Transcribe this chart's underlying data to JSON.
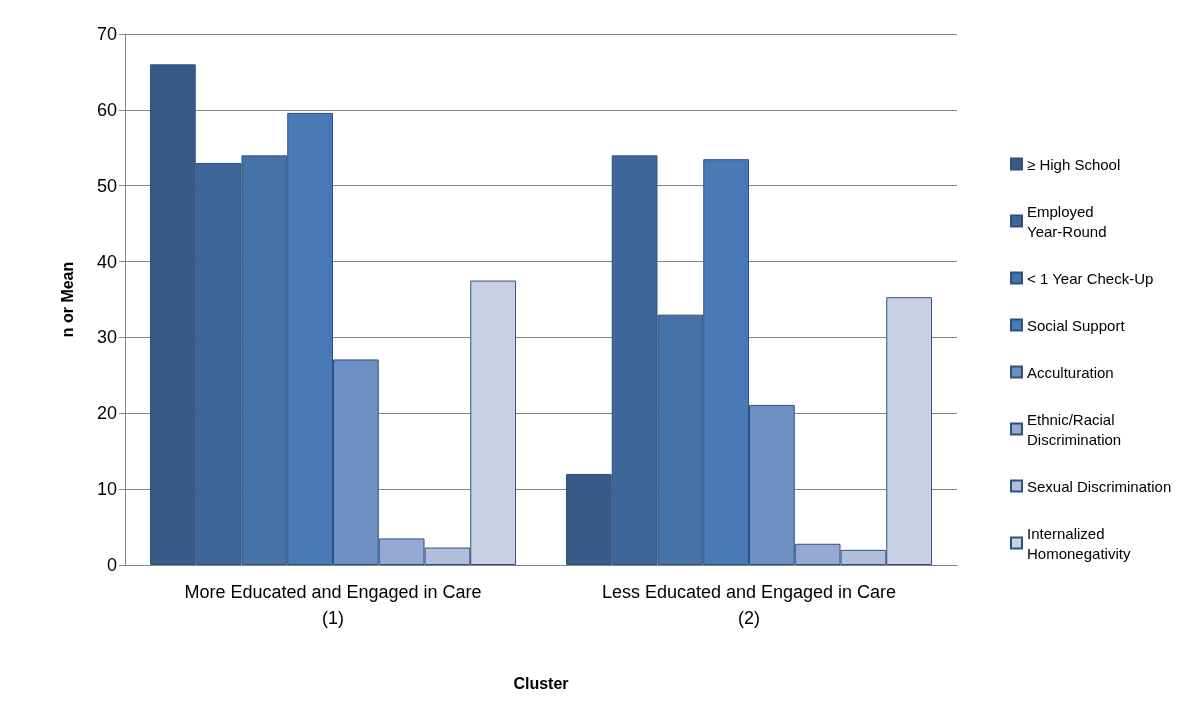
{
  "chart_data": {
    "type": "bar",
    "xlabel": "Cluster",
    "ylabel": "n or Mean",
    "categories": [
      "More Educated and Engaged in Care\n(1)",
      "Less Educated and Engaged in Care\n(2)"
    ],
    "series": [
      {
        "name": "≥ High School",
        "color": "#375a87",
        "values": [
          66,
          12
        ]
      },
      {
        "name": "Employed Year-Round",
        "color": "#3e6699",
        "values": [
          53,
          54
        ]
      },
      {
        "name": "< 1 Year Check-Up",
        "color": "#4572a7",
        "values": [
          54,
          33
        ]
      },
      {
        "name": "Social Support",
        "color": "#4a7ab5",
        "values": [
          59.6,
          53.5
        ]
      },
      {
        "name": "Acculturation",
        "color": "#6c8fc4",
        "values": [
          27.1,
          21.1
        ]
      },
      {
        "name": "Ethnic/Racial Discrimination",
        "color": "#97a9d3",
        "values": [
          3.5,
          2.8
        ]
      },
      {
        "name": "Sexual Discrimination",
        "color": "#afbfdc",
        "values": [
          2.3,
          2.0
        ]
      },
      {
        "name": "Internalized Homonegativity",
        "color": "#c8d0e3",
        "values": [
          37.5,
          35.3
        ]
      }
    ],
    "ylim": [
      0,
      70
    ],
    "yticks": [
      0,
      10,
      20,
      30,
      40,
      50,
      60,
      70
    ],
    "grid": "y",
    "legend": "right"
  }
}
